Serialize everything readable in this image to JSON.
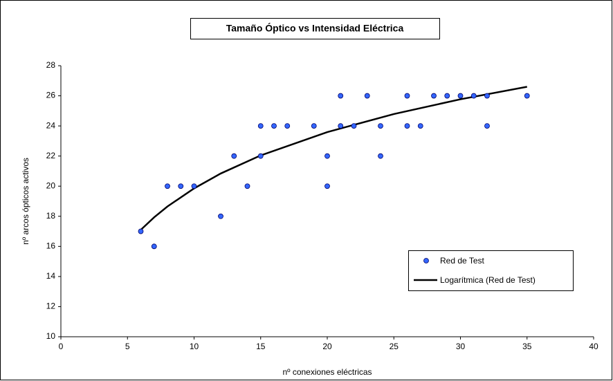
{
  "chart_data": {
    "type": "scatter",
    "title": "Tamaño Óptico vs Intensidad Eléctrica",
    "xlabel": "nº conexiones eléctricas",
    "ylabel": "nº arcos ópticos activos",
    "xlim": [
      0,
      40
    ],
    "xticks": [
      0,
      5,
      10,
      15,
      20,
      25,
      30,
      35,
      40
    ],
    "ylim": [
      10,
      28
    ],
    "yticks": [
      10,
      12,
      14,
      16,
      18,
      20,
      22,
      24,
      26,
      28
    ],
    "series": [
      {
        "name": "Red de Test",
        "color": "#3366ff",
        "x": [
          6,
          7,
          8,
          9,
          10,
          12,
          13,
          14,
          15,
          15,
          16,
          17,
          19,
          20,
          20,
          21,
          21,
          22,
          23,
          24,
          24,
          26,
          26,
          27,
          28,
          29,
          30,
          31,
          32,
          32,
          35
        ],
        "values": [
          17,
          16,
          20,
          20,
          20,
          18,
          22,
          20,
          24,
          22,
          24,
          24,
          24,
          22,
          20,
          26,
          24,
          24,
          26,
          24,
          22,
          26,
          24,
          24,
          26,
          26,
          26,
          26,
          26,
          24,
          26
        ]
      }
    ],
    "trendline": {
      "name": "Logarítmica (Red de Test)",
      "color": "#000000",
      "x": [
        6,
        7,
        8,
        10,
        12,
        15,
        20,
        25,
        30,
        35
      ],
      "values": [
        17.1,
        17.93,
        18.65,
        19.85,
        20.84,
        22.04,
        23.59,
        24.79,
        25.77,
        26.6
      ]
    }
  }
}
